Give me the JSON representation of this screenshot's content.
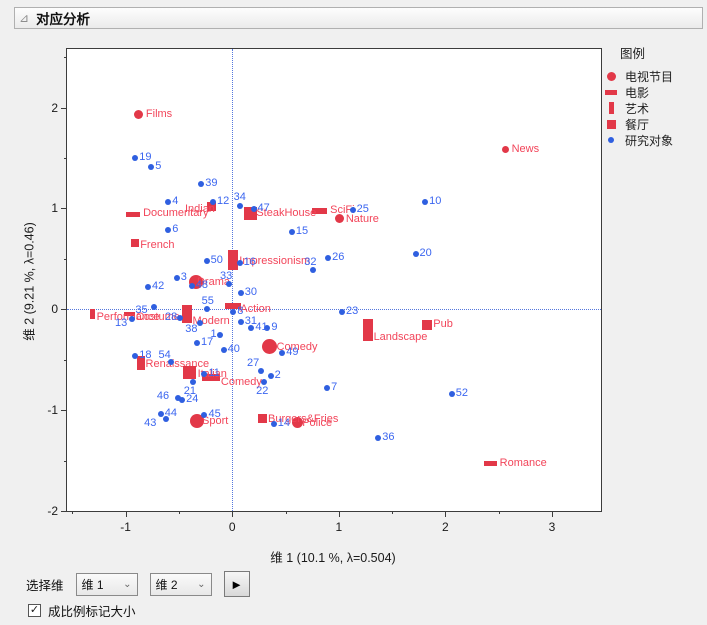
{
  "title": "对应分析",
  "colors": {
    "category_marker": "#e23848",
    "category_label": "#f2455a",
    "subject_marker": "#2f5fe0",
    "subject_label": "#3b66f0",
    "zero_line": "#5577dd"
  },
  "legend": {
    "title": "图例",
    "items": [
      {
        "label": "电视节目",
        "marker": "circle"
      },
      {
        "label": "电影",
        "marker": "hbar"
      },
      {
        "label": "艺术",
        "marker": "vbar"
      },
      {
        "label": "餐厅",
        "marker": "square"
      },
      {
        "label": "研究对象",
        "marker": "dot"
      }
    ]
  },
  "chart_data": {
    "type": "scatter",
    "xlabel": "维 1  (10.1 %, λ=0.504)",
    "ylabel": "维 2  (9.21 %, λ=0.46)",
    "xlim": [
      -1.55,
      3.46
    ],
    "ylim": [
      -2.0,
      2.58
    ],
    "xticks": [
      -1,
      0,
      1,
      2,
      3
    ],
    "xticks_minor": [
      -1.5,
      -0.5,
      0.5,
      1.5,
      2.5
    ],
    "yticks": [
      -2,
      -1,
      0,
      1,
      2
    ],
    "yticks_minor": [
      -1.5,
      -0.5,
      0.5,
      1.5,
      2.5
    ],
    "zero_lines": true,
    "series": [
      {
        "name": "电视节目",
        "marker": "circle",
        "marker_color": "#e23848",
        "label_color": "#f2455a",
        "points": [
          {
            "label": "Films",
            "x": -0.88,
            "y": 1.93,
            "w": 9,
            "h": 9
          },
          {
            "label": "News",
            "x": 2.56,
            "y": 1.58,
            "w": 7,
            "h": 7
          },
          {
            "label": "Nature",
            "x": 1.01,
            "y": 0.9,
            "w": 9,
            "h": 9,
            "dx": 6,
            "dy": -5
          },
          {
            "label": "Drama",
            "x": -0.34,
            "y": 0.27,
            "w": 14,
            "h": 14,
            "dx": 1,
            "dy": -6
          },
          {
            "label": "Comedy",
            "x": 0.35,
            "y": -0.37,
            "w": 15,
            "h": 15,
            "dx": 7,
            "dy": -6
          },
          {
            "label": "Sport",
            "x": -0.33,
            "y": -1.11,
            "w": 14,
            "h": 14,
            "dx": 5,
            "dy": -6
          },
          {
            "label": "Police",
            "x": 0.61,
            "y": -1.12,
            "w": 11,
            "h": 11,
            "dx": 5,
            "dy": -5
          }
        ]
      },
      {
        "name": "电影",
        "marker": "hbar",
        "marker_color": "#e23848",
        "label_color": "#f2455a",
        "points": [
          {
            "label": "Documentary",
            "x": -0.93,
            "y": 0.94,
            "w": 14,
            "h": 5
          },
          {
            "label": "SciFi",
            "x": 0.82,
            "y": 0.97,
            "w": 15,
            "h": 6
          },
          {
            "label": "Action",
            "x": 0.01,
            "y": 0.03,
            "w": 16,
            "h": 6,
            "dx": 7,
            "dy": -3
          },
          {
            "label": "Costume",
            "x": -0.96,
            "y": -0.05,
            "w": 11,
            "h": 4,
            "dx": 6,
            "dy": -3
          },
          {
            "label": "Comedy",
            "x": -0.2,
            "y": -0.68,
            "w": 18,
            "h": 7,
            "dx": 10,
            "dy": -2
          },
          {
            "label": "Romance",
            "x": 2.42,
            "y": -1.53,
            "w": 13,
            "h": 5
          }
        ]
      },
      {
        "name": "艺术",
        "marker": "vbar",
        "marker_color": "#e23848",
        "label_color": "#f2455a",
        "points": [
          {
            "label": "Impressionism",
            "x": 0.01,
            "y": 0.49,
            "w": 10,
            "h": 20,
            "dx": 6,
            "dy": -5
          },
          {
            "label": "Modern",
            "x": -0.42,
            "y": -0.05,
            "w": 10,
            "h": 18,
            "dx": 5,
            "dy": 1
          },
          {
            "label": "Performance",
            "x": -1.31,
            "y": -0.05,
            "w": 5,
            "h": 10,
            "dx": 4,
            "dy": -3
          },
          {
            "label": "Renaissance",
            "x": -0.86,
            "y": -0.53,
            "w": 8,
            "h": 14,
            "dx": 5,
            "dy": -5
          },
          {
            "label": "Landscape",
            "x": 1.27,
            "y": -0.21,
            "w": 10,
            "h": 22,
            "dx": 6,
            "dy": 1
          }
        ]
      },
      {
        "name": "餐厅",
        "marker": "square",
        "marker_color": "#e23848",
        "label_color": "#f2455a",
        "points": [
          {
            "label": "Indian",
            "x": -0.19,
            "y": 1.02,
            "w": 9,
            "h": 9,
            "dx": -27,
            "dy": -3
          },
          {
            "label": "SteakHouse",
            "x": 0.17,
            "y": 0.95,
            "w": 13,
            "h": 13,
            "dx": 6,
            "dy": -6
          },
          {
            "label": "French",
            "x": -0.91,
            "y": 0.66,
            "w": 8,
            "h": 8,
            "dx": 5,
            "dy": -4
          },
          {
            "label": "Pub",
            "x": 1.83,
            "y": -0.16,
            "w": 10,
            "h": 10,
            "dx": 6,
            "dy": -7
          },
          {
            "label": "Italian",
            "x": -0.4,
            "y": -0.63,
            "w": 13,
            "h": 13,
            "dx": 8,
            "dy": -5
          },
          {
            "label": "Burgers&Fries",
            "x": 0.28,
            "y": -1.08,
            "w": 9,
            "h": 9,
            "dx": 6,
            "dy": -5
          }
        ]
      },
      {
        "name": "研究对象",
        "marker": "dot",
        "marker_color": "#2f5fe0",
        "label_color": "#3b66f0",
        "points": [
          {
            "label": "1",
            "x": -0.11,
            "y": -0.26,
            "dx": -10
          },
          {
            "label": "2",
            "x": 0.36,
            "y": -0.66
          },
          {
            "label": "3",
            "x": -0.52,
            "y": 0.31
          },
          {
            "label": "4",
            "x": -0.6,
            "y": 1.06
          },
          {
            "label": "5",
            "x": -0.76,
            "y": 1.41
          },
          {
            "label": "6",
            "x": -0.6,
            "y": 0.79
          },
          {
            "label": "7",
            "x": 0.89,
            "y": -0.78
          },
          {
            "label": "8",
            "x": 0.01,
            "y": -0.03
          },
          {
            "label": "9",
            "x": 0.33,
            "y": -0.19
          },
          {
            "label": "10",
            "x": 1.81,
            "y": 1.06
          },
          {
            "label": "11",
            "x": -0.26,
            "y": -0.64
          },
          {
            "label": "12",
            "x": -0.18,
            "y": 1.06
          },
          {
            "label": "13",
            "x": -0.94,
            "y": -0.1,
            "dx": -17,
            "dy": -2
          },
          {
            "label": "14",
            "x": 0.39,
            "y": -1.14
          },
          {
            "label": "15",
            "x": 0.56,
            "y": 0.77
          },
          {
            "label": "16",
            "x": 0.07,
            "y": 0.46
          },
          {
            "label": "17",
            "x": -0.33,
            "y": -0.33
          },
          {
            "label": "18",
            "x": -0.91,
            "y": -0.46
          },
          {
            "label": "19",
            "x": -0.91,
            "y": 1.5
          },
          {
            "label": "20",
            "x": 1.72,
            "y": 0.55
          },
          {
            "label": "21",
            "x": -0.37,
            "y": -0.72,
            "dx": -9,
            "dy": 3
          },
          {
            "label": "22",
            "x": 0.3,
            "y": -0.72,
            "dx": -8,
            "dy": 3
          },
          {
            "label": "23",
            "x": 1.03,
            "y": -0.03
          },
          {
            "label": "24",
            "x": -0.47,
            "y": -0.9
          },
          {
            "label": "25",
            "x": 1.13,
            "y": 0.98
          },
          {
            "label": "26",
            "x": 0.9,
            "y": 0.51
          },
          {
            "label": "27",
            "x": 0.27,
            "y": -0.61,
            "dx": -14,
            "dy": -14
          },
          {
            "label": "28",
            "x": -0.49,
            "y": -0.09,
            "dx": -15
          },
          {
            "label": "30",
            "x": 0.08,
            "y": 0.16
          },
          {
            "label": "31",
            "x": 0.08,
            "y": -0.13
          },
          {
            "label": "32",
            "x": 0.76,
            "y": 0.39,
            "dx": -9,
            "dy": -14
          },
          {
            "label": "33",
            "x": -0.03,
            "y": 0.25,
            "dx": -9,
            "dy": -14
          },
          {
            "label": "34",
            "x": 0.07,
            "y": 1.02,
            "dx": -6,
            "dy": -15
          },
          {
            "label": "35",
            "x": -0.73,
            "y": 0.02,
            "dx": -19,
            "dy": -3
          },
          {
            "label": "36",
            "x": 1.37,
            "y": -1.28
          },
          {
            "label": "38",
            "x": -0.3,
            "y": -0.14,
            "dx": -15,
            "dy": 0
          },
          {
            "label": "39",
            "x": -0.29,
            "y": 1.24
          },
          {
            "label": "40",
            "x": -0.08,
            "y": -0.4
          },
          {
            "label": "41",
            "x": 0.18,
            "y": -0.19
          },
          {
            "label": "42",
            "x": -0.79,
            "y": 0.22
          },
          {
            "label": "43",
            "x": -0.62,
            "y": -1.09,
            "dx": -22,
            "dy": -2
          },
          {
            "label": "44",
            "x": -0.67,
            "y": -1.04
          },
          {
            "label": "45",
            "x": -0.26,
            "y": -1.05
          },
          {
            "label": "46",
            "x": -0.51,
            "y": -0.88,
            "dx": -21,
            "dy": -8
          },
          {
            "label": "47",
            "x": 0.2,
            "y": 0.99
          },
          {
            "label": "48",
            "x": -0.38,
            "y": 0.23
          },
          {
            "label": "49",
            "x": 0.47,
            "y": -0.43
          },
          {
            "label": "50",
            "x": -0.24,
            "y": 0.48
          },
          {
            "label": "52",
            "x": 2.06,
            "y": -0.84
          },
          {
            "label": "54",
            "x": -0.57,
            "y": -0.52,
            "dx": -13,
            "dy": -13
          },
          {
            "label": "55",
            "x": -0.24,
            "y": 0.0,
            "dx": -5,
            "dy": -14
          }
        ]
      }
    ]
  },
  "controls": {
    "select_dim_label": "选择维",
    "dim1_value": "维 1",
    "dim2_value": "维 2",
    "go_arrow": "►",
    "chevron": "⌄",
    "checkbox_checked": true,
    "checkbox_check_glyph": "✓",
    "checkbox_label": "成比例标记大小",
    "disclosure_glyph": "⊿"
  }
}
